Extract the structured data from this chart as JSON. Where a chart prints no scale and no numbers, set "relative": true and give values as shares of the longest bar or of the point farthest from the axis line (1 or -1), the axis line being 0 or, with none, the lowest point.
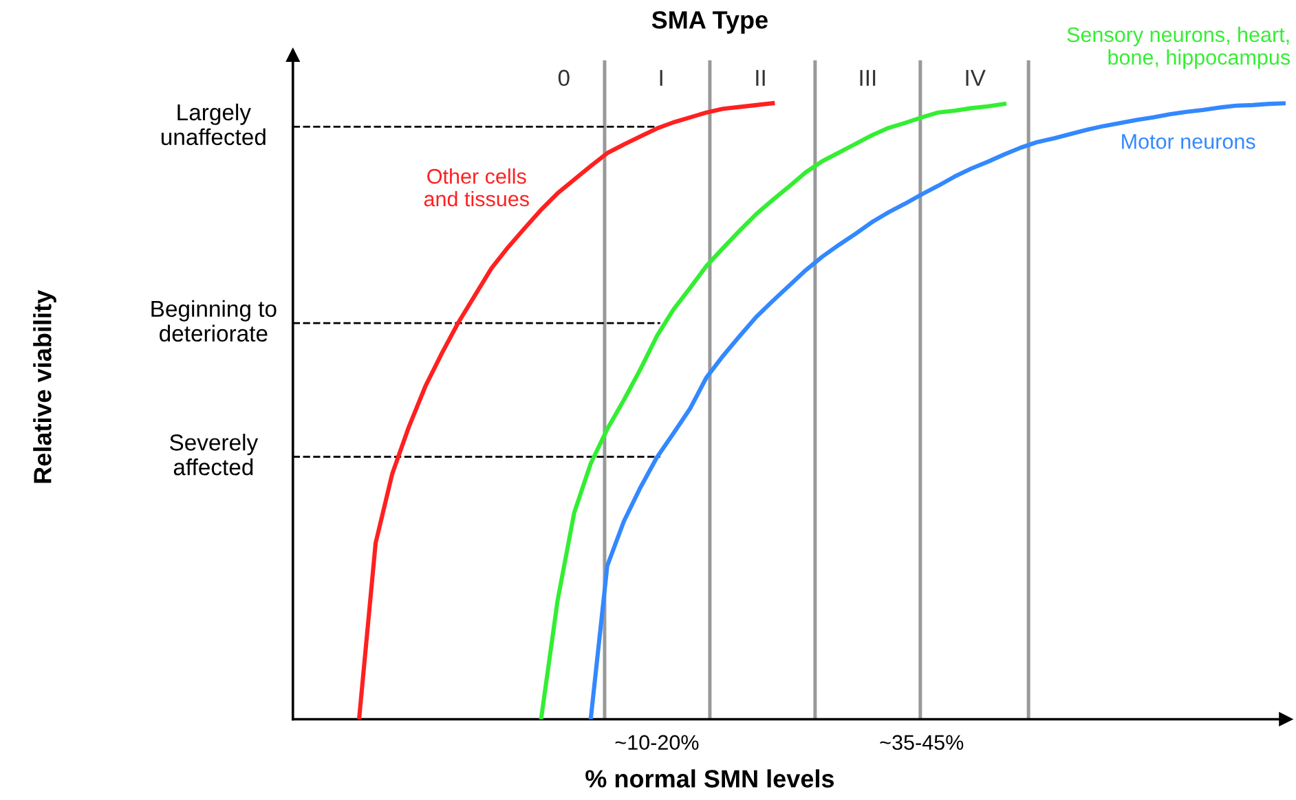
{
  "chart_data": {
    "type": "line",
    "relative": true,
    "title": "SMA Type",
    "xlabel": "% normal SMN levels",
    "categories": [
      null,
      null,
      null,
      null,
      null,
      null,
      null,
      null,
      null,
      null,
      null,
      null,
      null,
      null,
      null,
      null,
      null,
      null,
      null,
      null,
      null,
      null,
      "~10-20%",
      null,
      null,
      null,
      null,
      null,
      null,
      null,
      null,
      null,
      null,
      null,
      null,
      null,
      null,
      null,
      "~35-45%",
      null,
      null,
      null,
      null,
      null,
      null,
      null,
      null,
      null,
      null,
      null,
      null,
      null,
      null,
      null,
      null,
      null,
      null,
      null,
      null,
      null,
      null
    ],
    "legend": false,
    "marker": "none",
    "line_style": "solid",
    "series": [
      {
        "name": "Other cells\nand tissues",
        "color": "#ff2020",
        "values": [
          null,
          null,
          null,
          null,
          0,
          0.286,
          0.398,
          0.474,
          0.54,
          0.594,
          0.644,
          0.688,
          0.732,
          0.766,
          0.797,
          0.827,
          0.854,
          0.876,
          0.898,
          0.919,
          0.933,
          0.946,
          0.959,
          0.969,
          0.977,
          0.985,
          0.991,
          0.994,
          0.997,
          1.0,
          null,
          null,
          null,
          null,
          null,
          null,
          null,
          null,
          null,
          null,
          null,
          null,
          null,
          null,
          null,
          null,
          null,
          null,
          null,
          null,
          null,
          null,
          null,
          null,
          null,
          null,
          null,
          null,
          null,
          null,
          null
        ]
      },
      {
        "name": "Sensory neurons, heart,\nbone, hippocampus",
        "color": "#33ee33",
        "values": [
          null,
          null,
          null,
          null,
          null,
          null,
          null,
          null,
          null,
          null,
          null,
          null,
          null,
          null,
          null,
          0,
          0.193,
          0.335,
          0.415,
          0.471,
          0.518,
          0.568,
          0.622,
          0.665,
          0.7,
          0.736,
          0.765,
          0.793,
          0.82,
          0.843,
          0.865,
          0.888,
          0.906,
          0.92,
          0.934,
          0.948,
          0.96,
          0.968,
          0.977,
          0.985,
          0.988,
          0.992,
          0.995,
          0.999,
          null,
          null,
          null,
          null,
          null,
          null,
          null,
          null,
          null,
          null,
          null,
          null,
          null,
          null,
          null,
          null,
          null
        ]
      },
      {
        "name": "Motor neurons",
        "color": "#3388ff",
        "values": [
          null,
          null,
          null,
          null,
          null,
          null,
          null,
          null,
          null,
          null,
          null,
          null,
          null,
          null,
          null,
          null,
          null,
          null,
          0,
          0.249,
          0.321,
          0.376,
          0.425,
          0.464,
          0.504,
          0.555,
          0.59,
          0.622,
          0.653,
          0.679,
          0.704,
          0.729,
          0.751,
          0.77,
          0.788,
          0.807,
          0.823,
          0.837,
          0.852,
          0.866,
          0.881,
          0.894,
          0.905,
          0.917,
          0.928,
          0.937,
          0.943,
          0.95,
          0.957,
          0.963,
          0.968,
          0.973,
          0.977,
          0.982,
          0.986,
          0.989,
          0.993,
          0.996,
          0.997,
          0.999,
          1.0
        ]
      }
    ],
    "ref_lines": [
      {
        "axis": "y",
        "value": 0.962,
        "label": "Largely\nunaffected",
        "color": "#000000",
        "line_style": "dashed"
      },
      {
        "axis": "y",
        "value": 0.643,
        "label": "Beginning to\ndeteriorate",
        "color": "#000000",
        "line_style": "dashed"
      },
      {
        "axis": "y",
        "value": 0.426,
        "label": "Severely\naffected",
        "color": "#000000",
        "line_style": "dashed"
      }
    ],
    "annotations": [
      "0",
      "I",
      "II",
      "III",
      "IV",
      "Relative viability"
    ]
  }
}
